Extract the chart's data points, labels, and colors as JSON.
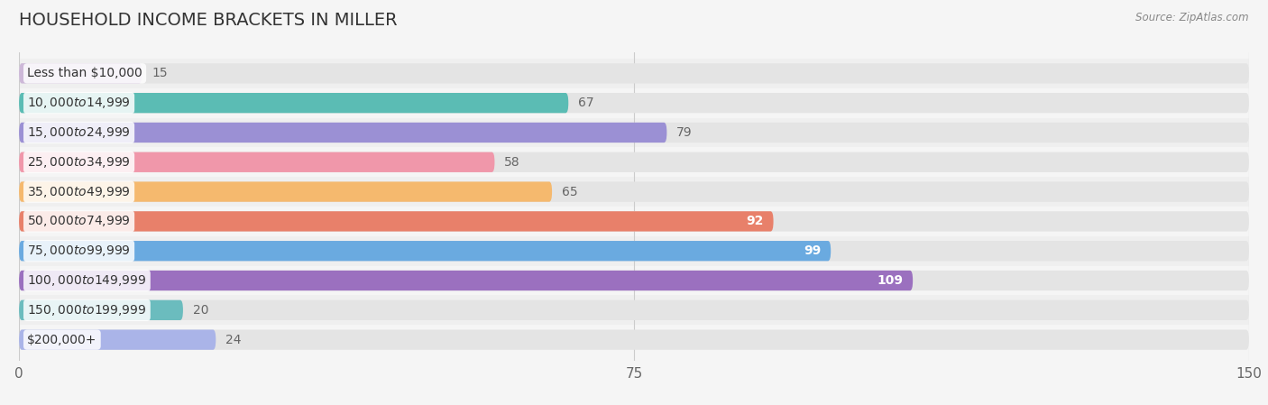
{
  "title": "HOUSEHOLD INCOME BRACKETS IN MILLER",
  "source": "Source: ZipAtlas.com",
  "categories": [
    "Less than $10,000",
    "$10,000 to $14,999",
    "$15,000 to $24,999",
    "$25,000 to $34,999",
    "$35,000 to $49,999",
    "$50,000 to $74,999",
    "$75,000 to $99,999",
    "$100,000 to $149,999",
    "$150,000 to $199,999",
    "$200,000+"
  ],
  "values": [
    15,
    67,
    79,
    58,
    65,
    92,
    99,
    109,
    20,
    24
  ],
  "bar_colors": [
    "#cdb8d8",
    "#5bbcb4",
    "#9b90d4",
    "#f097aa",
    "#f5b96e",
    "#e8806a",
    "#6aaae0",
    "#9b70bf",
    "#6bbcbe",
    "#aab4e8"
  ],
  "value_inside": [
    false,
    false,
    false,
    false,
    false,
    true,
    true,
    true,
    false,
    false
  ],
  "xlim": [
    0,
    150
  ],
  "xticks": [
    0,
    75,
    150
  ],
  "background_color": "#f5f5f5",
  "bar_bg_color": "#e4e4e4",
  "title_fontsize": 14,
  "tick_fontsize": 11,
  "cat_fontsize": 10,
  "val_fontsize": 10,
  "bar_height": 0.68
}
